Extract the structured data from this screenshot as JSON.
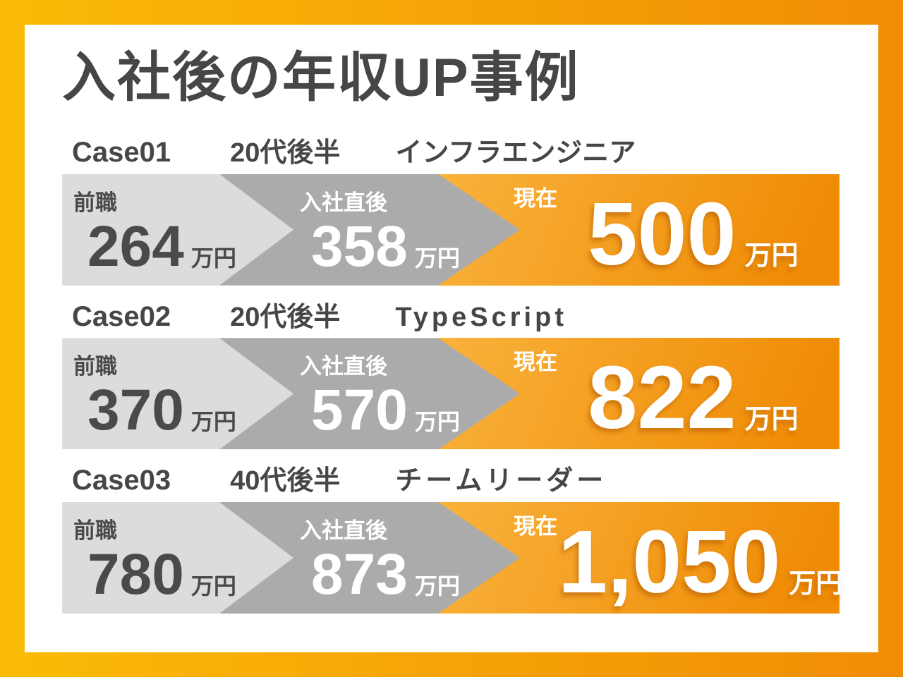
{
  "title": "入社後の年収UP事例",
  "stage_labels": {
    "before": "前職",
    "after": "入社直後",
    "now": "現在"
  },
  "unit": "万円",
  "cases": [
    {
      "id": "Case01",
      "age": "20代後半",
      "role": "インフラエンジニア",
      "before": "264",
      "after": "358",
      "now": "500"
    },
    {
      "id": "Case02",
      "age": "20代後半",
      "role": "TypeScript",
      "before": "370",
      "after": "570",
      "now": "822"
    },
    {
      "id": "Case03",
      "age": "40代後半",
      "role": "チームリーダー",
      "before": "780",
      "after": "873",
      "now": "1,050"
    }
  ],
  "colors": {
    "frame_gradient_start": "#fbbb07",
    "frame_gradient_end": "#f08c05",
    "card_bg": "#ffffff",
    "segment_before_bg": "#dcdcdc",
    "segment_after_bg": "#ababab",
    "segment_now_gradient_start": "#f9b23c",
    "segment_now_gradient_end": "#ef8b04",
    "text_dark": "#464646",
    "text_light": "#ffffff"
  },
  "chart_data": {
    "type": "table",
    "title": "入社後の年収UP事例",
    "categories": [
      "前職",
      "入社直後",
      "現在"
    ],
    "unit": "万円",
    "series": [
      {
        "name": "Case01 20代後半 インフラエンジニア",
        "values": [
          264,
          358,
          500
        ]
      },
      {
        "name": "Case02 20代後半 TypeScript",
        "values": [
          370,
          570,
          822
        ]
      },
      {
        "name": "Case03 40代後半 チームリーダー",
        "values": [
          780,
          873,
          1050
        ]
      }
    ]
  }
}
